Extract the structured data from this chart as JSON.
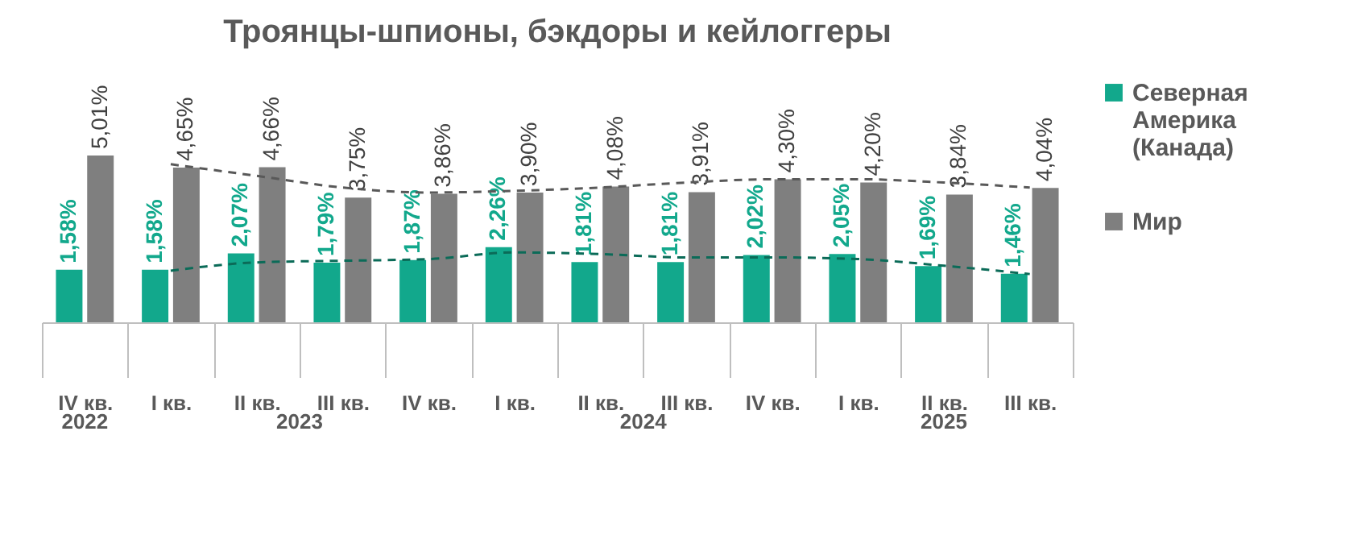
{
  "chart_data": {
    "type": "bar",
    "title": "Троянцы-шпионы, бэкдоры и кейлоггеры",
    "categories": [
      "IV кв.",
      "I кв.",
      "II кв.",
      "III кв.",
      "IV кв.",
      "I кв.",
      "II кв.",
      "III кв.",
      "IV кв.",
      "I кв.",
      "II кв.",
      "III кв."
    ],
    "annotations": [
      "2022",
      "2023",
      "2024",
      "2025"
    ],
    "series": [
      {
        "name": "Северная Америка (Канада)",
        "color": "#12a88c",
        "values": [
          1.58,
          1.58,
          2.07,
          1.79,
          1.87,
          2.26,
          1.81,
          1.81,
          2.02,
          2.05,
          1.69,
          1.46
        ],
        "value_labels": [
          "1,58%",
          "1,58%",
          "2,07%",
          "1,79%",
          "1,87%",
          "2,26%",
          "1,81%",
          "1,81%",
          "2,02%",
          "2,05%",
          "1,69%",
          "1,46%"
        ]
      },
      {
        "name": "Мир",
        "color": "#7f7f7f",
        "values": [
          5.01,
          4.65,
          4.66,
          3.75,
          3.86,
          3.9,
          4.08,
          3.91,
          4.3,
          4.2,
          3.84,
          4.04
        ],
        "value_labels": [
          "5,01%",
          "4,65%",
          "4,66%",
          "3,75%",
          "3,86%",
          "3,90%",
          "4,08%",
          "3,91%",
          "4,30%",
          "4,20%",
          "3,84%",
          "4,04%"
        ]
      },
      {
        "type": "line",
        "color": "#0b6b58",
        "line_style": "dashed",
        "values": [
          null,
          1.55,
          1.8,
          1.85,
          1.9,
          2.1,
          2.05,
          1.95,
          1.95,
          1.9,
          1.7,
          1.45
        ]
      },
      {
        "type": "line",
        "color": "#595959",
        "line_style": "dashed",
        "values": [
          null,
          4.75,
          4.4,
          4.05,
          3.9,
          3.95,
          4.05,
          4.2,
          4.3,
          4.3,
          4.2,
          4.05
        ]
      }
    ],
    "legend": "right"
  }
}
